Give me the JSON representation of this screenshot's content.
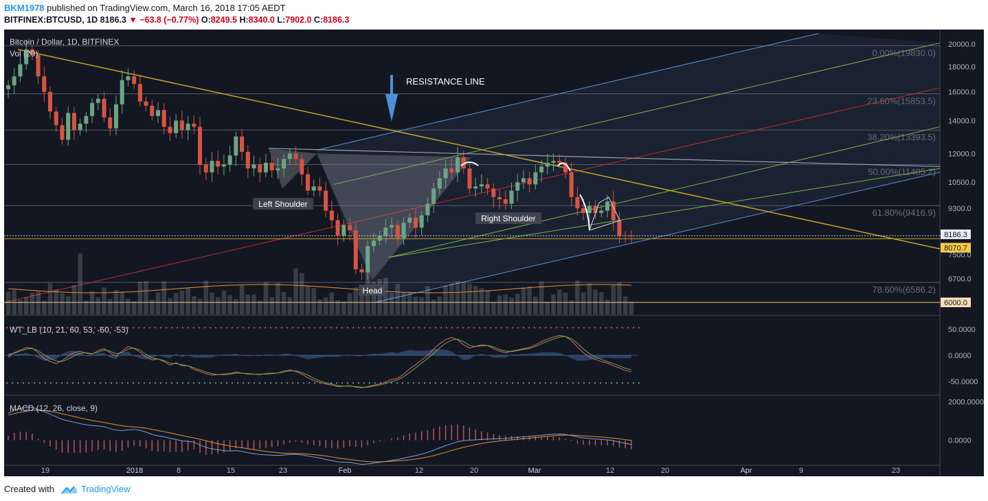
{
  "header": {
    "user": "BKM1978",
    "published_text": "published on TradingView.com, March 16, 2018 17:05 AEDT",
    "symbol_label": "BITFINEX:BTCUSD, 1D",
    "last": "8186.3",
    "change": "−63.8 (−0.77%)",
    "ohlc": [
      {
        "label": "O:",
        "value": "8249.5"
      },
      {
        "label": "H:",
        "value": "8340.0"
      },
      {
        "label": "L:",
        "value": "7902.0"
      },
      {
        "label": "C:",
        "value": "8186.3"
      }
    ]
  },
  "footer": {
    "created_with": "Created with",
    "brand": "TradingView"
  },
  "colors": {
    "background": "#131722",
    "up": "#6ba583",
    "down": "#d75442",
    "price_badge": "#e8eaf6",
    "support_badge": "#f7c948",
    "fib": "#787b86",
    "resistance": "#c9a227",
    "pitchfork_blue": "#5b8fd9",
    "pitchfork_green": "#7cb342",
    "pitchfork_red": "#c62828",
    "wt_line1": "#e06666",
    "wt_line2": "#6aa84f",
    "macd": "#7e9fd6",
    "signal": "#e69138"
  },
  "chart_data": [
    {
      "type": "candlestick",
      "title": "Bitcoin / Dollar, 1D, BITFINEX",
      "volume_label": "Vol (20)",
      "x_tick_labels": [
        "19",
        "2018",
        "8",
        "15",
        "23",
        "Feb",
        "12",
        "20",
        "Mar",
        "12",
        "20",
        "Apr",
        "9",
        "23"
      ],
      "y_tick_labels": [
        "20000.0",
        "18000.0",
        "16000.0",
        "14000.0",
        "12000.0",
        "10500.0",
        "9300.0",
        "7500.0",
        "6700.0",
        "6000.0"
      ],
      "y_scale": "log",
      "ylim": [
        5800,
        21500
      ],
      "last_price": 8186.3,
      "price_badges": [
        "8186.3",
        "8070.7",
        "6000.0"
      ],
      "closes": [
        16500,
        17200,
        18200,
        19500,
        19000,
        17200,
        16000,
        14600,
        13700,
        12800,
        14500,
        13400,
        13800,
        14300,
        15200,
        15500,
        14200,
        13500,
        15100,
        16900,
        17200,
        16600,
        15300,
        15000,
        14300,
        14700,
        13600,
        13200,
        14000,
        13400,
        13800,
        13600,
        11400,
        11000,
        11600,
        11300,
        11400,
        11900,
        13000,
        12100,
        11200,
        11400,
        11000,
        11500,
        11100,
        11200,
        11700,
        12000,
        11700,
        10900,
        10100,
        10300,
        10100,
        9200,
        8800,
        8200,
        8600,
        8400,
        7000,
        6900,
        7800,
        8000,
        8200,
        8500,
        8600,
        8100,
        8700,
        8900,
        8500,
        9000,
        9500,
        10200,
        10700,
        11200,
        11000,
        11800,
        11200,
        10200,
        10300,
        10400,
        10200,
        9800,
        9700,
        9500,
        10100,
        10500,
        10700,
        10400,
        11000,
        11300,
        11500,
        11600,
        11500,
        11000,
        9800,
        9300,
        9100,
        9400,
        9100,
        9200,
        9600,
        8800,
        8200,
        8190,
        8186.3
      ],
      "volume_overlay_note": "",
      "fib_levels": [
        {
          "label": "0.00%(19830.0)",
          "price": 19830.0
        },
        {
          "label": "23.60%(15853.5)",
          "price": 15853.5
        },
        {
          "label": "38.20%(13393.5)",
          "price": 13393.5
        },
        {
          "label": "50.00%(11405.2)",
          "price": 11405.2
        },
        {
          "label": "61.80%(9416.9)",
          "price": 9416.9
        },
        {
          "label": "78.60%(6586.2)",
          "price": 6586.2
        }
      ],
      "annotations": [
        "RESISTANCE LINE",
        "Left Shoulder",
        "Head",
        "Right Shoulder"
      ]
    },
    {
      "type": "line",
      "title": "WT_LB (10, 21, 60, 53, -60, -53)",
      "y_tick_labels": [
        "50.0000",
        "0.0000",
        "-50.0000"
      ],
      "ylim": [
        -75,
        75
      ],
      "series": [
        {
          "values": [
            -2,
            5,
            10,
            15,
            14,
            5,
            -6,
            -12,
            -16,
            -10,
            -2,
            5,
            8,
            4,
            2,
            9,
            13,
            5,
            -2,
            8,
            17,
            13,
            6,
            -3,
            -9,
            -7,
            -12,
            -19,
            -14,
            -20,
            -20,
            -27,
            -31,
            -35,
            -38,
            -37,
            -36,
            -35,
            -32,
            -34,
            -36,
            -36,
            -37,
            -35,
            -34,
            -34,
            -30,
            -28,
            -31,
            -36,
            -43,
            -48,
            -52,
            -55,
            -57,
            -60,
            -59,
            -58,
            -61,
            -62,
            -60,
            -57,
            -55,
            -51,
            -46,
            -44,
            -36,
            -26,
            -18,
            -9,
            0,
            12,
            22,
            30,
            34,
            30,
            20,
            14,
            17,
            20,
            19,
            13,
            8,
            5,
            8,
            10,
            13,
            15,
            20,
            26,
            31,
            35,
            38,
            36,
            28,
            16,
            5,
            -3,
            -8,
            -12,
            -15,
            -20,
            -24,
            -29,
            -32
          ]
        },
        {
          "values": [
            2,
            4,
            8,
            12,
            13,
            9,
            1,
            -6,
            -11,
            -12,
            -7,
            -1,
            4,
            5,
            3,
            6,
            10,
            8,
            3,
            5,
            12,
            14,
            10,
            2,
            -5,
            -7,
            -10,
            -15,
            -16,
            -18,
            -20,
            -24,
            -28,
            -32,
            -35,
            -37,
            -37,
            -36,
            -34,
            -34,
            -35,
            -36,
            -36,
            -36,
            -35,
            -34,
            -32,
            -30,
            -30,
            -33,
            -38,
            -44,
            -49,
            -53,
            -55,
            -58,
            -59,
            -59,
            -60,
            -61,
            -61,
            -59,
            -57,
            -54,
            -50,
            -47,
            -41,
            -33,
            -24,
            -15,
            -6,
            4,
            14,
            23,
            29,
            31,
            26,
            19,
            17,
            18,
            19,
            16,
            11,
            8,
            7,
            9,
            11,
            13,
            17,
            22,
            27,
            31,
            35,
            36,
            32,
            23,
            12,
            3,
            -3,
            -8,
            -12,
            -16,
            -20,
            -25,
            -28
          ]
        }
      ]
    },
    {
      "type": "line",
      "title": "MACD (12, 26, close, 9)",
      "y_tick_labels": [
        "2000.0000",
        "0.0000"
      ],
      "ylim": [
        -1300,
        2300
      ],
      "series": [
        {
          "values": [
            1400,
            1550,
            1650,
            1700,
            1700,
            1600,
            1480,
            1350,
            1220,
            1080,
            1000,
            930,
            860,
            800,
            760,
            740,
            700,
            600,
            520,
            500,
            540,
            560,
            510,
            420,
            300,
            230,
            180,
            100,
            40,
            -40,
            -60,
            -100,
            -250,
            -380,
            -440,
            -500,
            -540,
            -560,
            -540,
            -580,
            -650,
            -700,
            -740,
            -760,
            -780,
            -790,
            -770,
            -740,
            -730,
            -760,
            -820,
            -870,
            -920,
            -1000,
            -1060,
            -1120,
            -1140,
            -1150,
            -1200,
            -1250,
            -1230,
            -1190,
            -1150,
            -1100,
            -1040,
            -1000,
            -930,
            -860,
            -800,
            -720,
            -630,
            -520,
            -400,
            -280,
            -180,
            -80,
            -20,
            0,
            20,
            40,
            60,
            70,
            80,
            90,
            120,
            150,
            180,
            200,
            230,
            260,
            290,
            310,
            320,
            300,
            240,
            170,
            120,
            90,
            60,
            40,
            20,
            -20,
            -100,
            -160,
            -220
          ]
        },
        {
          "values": [
            1300,
            1380,
            1450,
            1500,
            1550,
            1560,
            1540,
            1500,
            1440,
            1370,
            1300,
            1230,
            1160,
            1090,
            1020,
            970,
            920,
            860,
            800,
            750,
            710,
            690,
            660,
            620,
            560,
            500,
            440,
            380,
            310,
            240,
            180,
            120,
            50,
            -30,
            -110,
            -180,
            -240,
            -300,
            -350,
            -390,
            -440,
            -490,
            -540,
            -580,
            -620,
            -650,
            -670,
            -680,
            -690,
            -700,
            -720,
            -750,
            -780,
            -820,
            -870,
            -920,
            -960,
            -1000,
            -1040,
            -1080,
            -1110,
            -1120,
            -1120,
            -1110,
            -1090,
            -1070,
            -1050,
            -1020,
            -980,
            -930,
            -870,
            -800,
            -720,
            -630,
            -540,
            -450,
            -370,
            -300,
            -230,
            -170,
            -120,
            -80,
            -40,
            -10,
            20,
            50,
            80,
            110,
            140,
            170,
            200,
            230,
            250,
            265,
            262,
            245,
            225,
            205,
            180,
            160,
            140,
            110,
            70,
            30,
            -10
          ]
        }
      ]
    }
  ]
}
